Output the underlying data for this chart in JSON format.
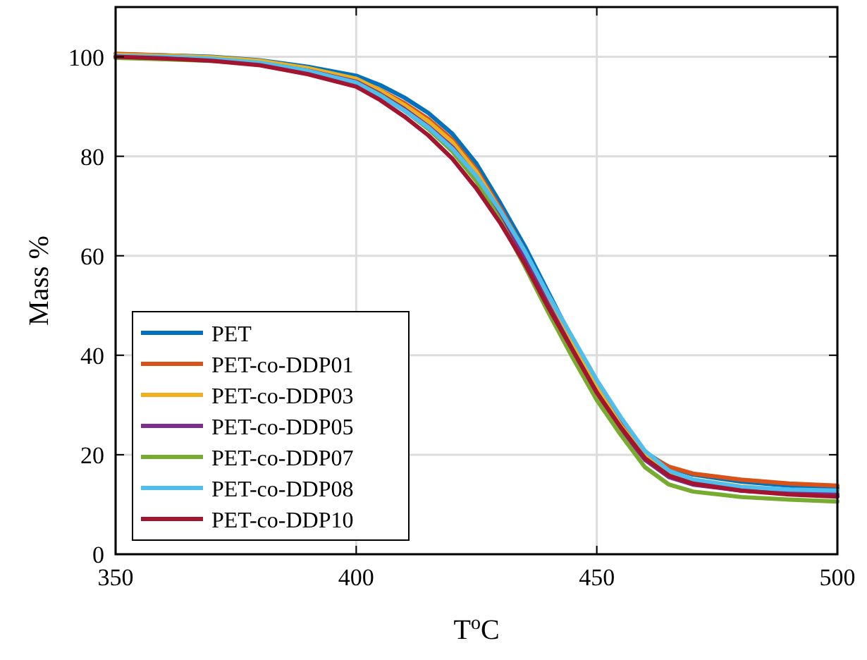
{
  "chart_data": {
    "type": "line",
    "xlabel": "T$^{o}$C",
    "ylabel": "Mass %",
    "xlim": [
      350,
      500
    ],
    "ylim": [
      0,
      110
    ],
    "xticks": [
      350,
      400,
      450,
      500
    ],
    "yticks": [
      0,
      20,
      40,
      60,
      80,
      100
    ],
    "grid": true,
    "legend": "bottom left",
    "line_style": "solid",
    "marker": "none",
    "x": [
      350,
      360,
      370,
      380,
      390,
      400,
      405,
      410,
      415,
      420,
      425,
      430,
      435,
      440,
      445,
      450,
      455,
      460,
      465,
      470,
      480,
      490,
      500
    ],
    "series": [
      {
        "name": "PET",
        "color": "#0072bd",
        "values": [
          100.5,
          100.3,
          100,
          99.3,
          98,
          96.2,
          94.3,
          91.8,
          88.7,
          84.5,
          78.5,
          70.5,
          62,
          52.5,
          43,
          34.5,
          26.5,
          20.5,
          17.5,
          16,
          14.6,
          13.8,
          13.3
        ]
      },
      {
        "name": "PET-co-DDP01",
        "color": "#d95319",
        "values": [
          100.6,
          100.3,
          99.8,
          99,
          97.5,
          95.5,
          93.3,
          90.7,
          87.5,
          83.3,
          77.3,
          69.5,
          61,
          51.5,
          42.5,
          33.5,
          26,
          20.3,
          17.6,
          16.2,
          15,
          14.2,
          13.8
        ]
      },
      {
        "name": "PET-co-DDP03",
        "color": "#edb120",
        "values": [
          100.4,
          100.2,
          99.9,
          99.2,
          97.7,
          95.6,
          93.2,
          90.3,
          87,
          82.8,
          76.8,
          69,
          60.5,
          51,
          42,
          33.5,
          25.8,
          19.8,
          16.5,
          15,
          13.6,
          12.9,
          12.5
        ]
      },
      {
        "name": "PET-co-DDP05",
        "color": "#7e2f8e",
        "values": [
          99.9,
          99.7,
          99.4,
          98.7,
          97.2,
          95,
          92.5,
          89.5,
          86,
          81.8,
          75.8,
          68,
          59.5,
          50,
          41,
          32.5,
          25,
          19,
          15.5,
          14,
          12.8,
          12.3,
          12
        ]
      },
      {
        "name": "PET-co-DDP07",
        "color": "#77ac30",
        "values": [
          99.8,
          99.5,
          99.2,
          98.5,
          97,
          94.8,
          92.3,
          89.2,
          85.5,
          81,
          75,
          67,
          58,
          48.5,
          39.5,
          31,
          24,
          17.5,
          14,
          12.6,
          11.5,
          11,
          10.6
        ]
      },
      {
        "name": "PET-co-DDP08",
        "color": "#4dbeee",
        "values": [
          100.2,
          100,
          99.6,
          98.8,
          97.2,
          94.8,
          92.2,
          89.2,
          85.8,
          81.5,
          76,
          69,
          61,
          52,
          43.5,
          35,
          27.5,
          20.8,
          16.8,
          15,
          13.5,
          13,
          12.8
        ]
      },
      {
        "name": "PET-co-DDP10",
        "color": "#a2142f",
        "values": [
          100,
          99.7,
          99.2,
          98.3,
          96.5,
          94,
          91.3,
          88,
          84.2,
          79.5,
          73.5,
          66.5,
          58.5,
          49.5,
          41,
          32.5,
          25.5,
          19.3,
          15.8,
          14.2,
          12.8,
          12,
          11.6
        ]
      }
    ]
  }
}
